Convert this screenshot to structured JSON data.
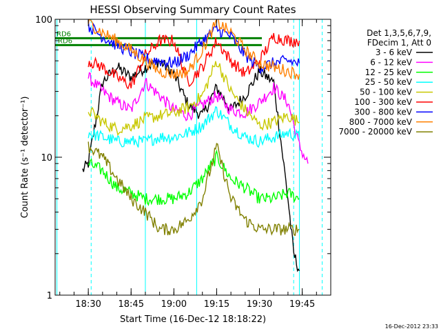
{
  "chart_data": {
    "type": "line",
    "title": "HESSI Observing Summary Count Rates",
    "xlabel": "Start Time (16-Dec-12 18:18:22)",
    "ylabel": "Count Rate (s⁻¹ detector⁻¹)",
    "yscale": "log",
    "ylim": [
      1,
      100
    ],
    "xlim": [
      "18:18:22",
      "19:55:00"
    ],
    "x_ticks": [
      "18:30",
      "18:45",
      "19:00",
      "19:15",
      "19:30",
      "19:45"
    ],
    "y_ticks": [
      "1",
      "10",
      "100"
    ],
    "legend_header": [
      "Det 1,3,5,6,7,9,",
      "FDecim 1, Att 0"
    ],
    "legend_position": "right",
    "timestamp": "16-Dec-2012 23:33",
    "flag_lines": [
      {
        "label": "RD6",
        "y": 73,
        "color": "#008000"
      },
      {
        "label": "RD6",
        "y": 65,
        "color": "#008000"
      }
    ],
    "vlines": {
      "solid": [
        "18:19",
        "18:50",
        "19:08",
        "19:44"
      ],
      "dashed": [
        "18:31",
        "19:42",
        "19:52"
      ]
    },
    "series": [
      {
        "name": "3 - 6 keV",
        "color": "#000000",
        "x": [
          "18:28",
          "18:30",
          "18:35",
          "18:40",
          "18:45",
          "18:50",
          "18:55",
          "19:00",
          "19:05",
          "19:10",
          "19:15",
          "19:20",
          "19:25",
          "19:30",
          "19:35",
          "19:40",
          "19:42",
          "19:44"
        ],
        "y": [
          8,
          9,
          35,
          45,
          38,
          45,
          50,
          40,
          24,
          20,
          32,
          22,
          28,
          42,
          35,
          5,
          2,
          1.5
        ]
      },
      {
        "name": "6 - 12 keV",
        "color": "#ff00ff",
        "x": [
          "18:30",
          "18:35",
          "18:40",
          "18:45",
          "18:50",
          "18:55",
          "19:00",
          "19:05",
          "19:10",
          "19:15",
          "19:20",
          "19:25",
          "19:30",
          "19:35",
          "19:40",
          "19:44",
          "19:47"
        ],
        "y": [
          38,
          30,
          25,
          22,
          35,
          28,
          22,
          20,
          24,
          28,
          22,
          21,
          25,
          32,
          25,
          12,
          9
        ]
      },
      {
        "name": "12 - 25 keV",
        "color": "#00ff00",
        "x": [
          "18:30",
          "18:35",
          "18:40",
          "18:45",
          "18:50",
          "18:55",
          "19:00",
          "19:05",
          "19:10",
          "19:15",
          "19:20",
          "19:25",
          "19:30",
          "19:35",
          "19:40",
          "19:44"
        ],
        "y": [
          9,
          8,
          6,
          5.5,
          5,
          5,
          5,
          5.5,
          7,
          10,
          7,
          6,
          5,
          5,
          5.5,
          5
        ]
      },
      {
        "name": "25 - 50 keV",
        "color": "#00ffff",
        "x": [
          "18:30",
          "18:35",
          "18:40",
          "18:45",
          "18:50",
          "18:55",
          "19:00",
          "19:05",
          "19:10",
          "19:15",
          "19:20",
          "19:25",
          "19:30",
          "19:35",
          "19:40",
          "19:44"
        ],
        "y": [
          15,
          14,
          13,
          13,
          13,
          14,
          14,
          15,
          17,
          22,
          17,
          14,
          13,
          14,
          15,
          14
        ]
      },
      {
        "name": "50 - 100 keV",
        "color": "#c8c800",
        "x": [
          "18:30",
          "18:35",
          "18:40",
          "18:45",
          "18:50",
          "18:55",
          "19:00",
          "19:05",
          "19:10",
          "19:15",
          "19:20",
          "19:25",
          "19:30",
          "19:35",
          "19:40",
          "19:44"
        ],
        "y": [
          22,
          18,
          16,
          17,
          19,
          20,
          21,
          23,
          28,
          50,
          30,
          22,
          17,
          18,
          20,
          18
        ]
      },
      {
        "name": "100 - 300 keV",
        "color": "#ff0000",
        "x": [
          "18:30",
          "18:35",
          "18:40",
          "18:45",
          "18:50",
          "18:55",
          "19:00",
          "19:05",
          "19:10",
          "19:15",
          "19:20",
          "19:25",
          "19:30",
          "19:35",
          "19:40",
          "19:44"
        ],
        "y": [
          50,
          45,
          38,
          33,
          55,
          70,
          70,
          35,
          45,
          70,
          50,
          40,
          50,
          75,
          70,
          70
        ]
      },
      {
        "name": "300 - 800 keV",
        "color": "#0000ff",
        "x": [
          "18:30",
          "18:35",
          "18:40",
          "18:45",
          "18:50",
          "18:55",
          "19:00",
          "19:05",
          "19:10",
          "19:15",
          "19:20",
          "19:25",
          "19:30",
          "19:35",
          "19:40",
          "19:44"
        ],
        "y": [
          90,
          75,
          65,
          58,
          52,
          50,
          48,
          55,
          70,
          85,
          75,
          55,
          45,
          48,
          50,
          48
        ]
      },
      {
        "name": "800 - 7000 keV",
        "color": "#ff8000",
        "x": [
          "18:30",
          "18:35",
          "18:40",
          "18:45",
          "18:50",
          "18:55",
          "19:00",
          "19:05",
          "19:10",
          "19:15",
          "19:20",
          "19:25",
          "19:30",
          "19:35",
          "19:40",
          "19:44"
        ],
        "y": [
          95,
          80,
          70,
          60,
          50,
          42,
          40,
          42,
          60,
          95,
          80,
          60,
          48,
          45,
          42,
          40
        ]
      },
      {
        "name": "7000 - 20000 keV",
        "color": "#808000",
        "x": [
          "18:30",
          "18:35",
          "18:40",
          "18:45",
          "18:50",
          "18:55",
          "19:00",
          "19:05",
          "19:10",
          "19:15",
          "19:20",
          "19:25",
          "19:30",
          "19:35",
          "19:40",
          "19:44"
        ],
        "y": [
          12,
          10,
          7,
          5,
          4,
          3,
          3,
          3.5,
          5,
          12,
          5,
          3.5,
          3,
          3,
          3,
          3
        ]
      }
    ]
  }
}
